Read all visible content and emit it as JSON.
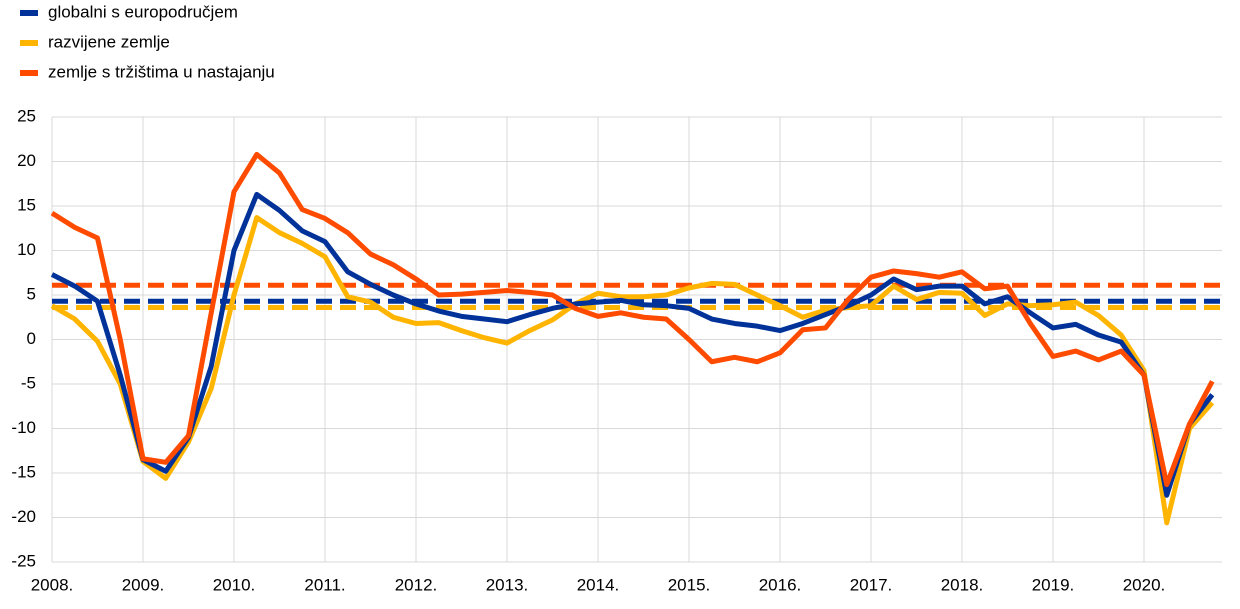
{
  "chart_data": {
    "type": "line",
    "categories": [
      "2008.",
      null,
      null,
      null,
      "2009.",
      null,
      null,
      null,
      "2010.",
      null,
      null,
      null,
      "2011.",
      null,
      null,
      null,
      "2012.",
      null,
      null,
      null,
      "2013.",
      null,
      null,
      null,
      "2014.",
      null,
      null,
      null,
      "2015.",
      null,
      null,
      null,
      "2016.",
      null,
      null,
      null,
      "2017.",
      null,
      null,
      null,
      "2018.",
      null,
      null,
      null,
      "2019.",
      null,
      null,
      null,
      "2020.",
      null,
      null,
      null
    ],
    "ylim": [
      -25,
      25
    ],
    "yticks": [
      25,
      20,
      15,
      10,
      5,
      0,
      -5,
      -10,
      -15,
      -20,
      -25
    ],
    "grid": true,
    "series": [
      {
        "name": "globalni s europodručjem",
        "color": "#003299",
        "average": 4.3,
        "values": [
          7.3,
          6,
          4.3,
          -4,
          -13.5,
          -14.8,
          -11,
          -3,
          10,
          16.3,
          14.5,
          12.2,
          11,
          7.6,
          6.2,
          5,
          4,
          3.2,
          2.6,
          2.3,
          2,
          2.8,
          3.5,
          4,
          4.2,
          4.4,
          3.9,
          3.8,
          3.5,
          2.3,
          1.8,
          1.5,
          1,
          1.8,
          2.8,
          3.8,
          5,
          6.8,
          5.6,
          6,
          6,
          4,
          4.8,
          3,
          1.3,
          1.7,
          0.5,
          -0.3,
          -4,
          -17.5,
          -9.5,
          -6.2
        ]
      },
      {
        "name": "razvijene zemlje",
        "color": "#ffb400",
        "average": 3.6,
        "values": [
          3.8,
          2.3,
          -0.2,
          -5,
          -13.7,
          -15.6,
          -11.5,
          -5.5,
          5,
          13.7,
          12,
          10.8,
          9.3,
          4.8,
          4.2,
          2.5,
          1.8,
          1.9,
          1,
          0.2,
          -0.4,
          1,
          2.2,
          4,
          5.2,
          4.8,
          4.8,
          5,
          5.8,
          6.3,
          6.2,
          5,
          3.8,
          2.5,
          3.3,
          3.6,
          3.8,
          6,
          4.5,
          5.3,
          5.2,
          2.7,
          4,
          3.8,
          3.9,
          4.2,
          2.7,
          0.5,
          -3.5,
          -20.6,
          -10,
          -7.1
        ]
      },
      {
        "name": "zemlje s tržištima u nastajanju",
        "color": "#ff4b00",
        "average": 6.1,
        "values": [
          14.2,
          12.6,
          11.4,
          0,
          -13.4,
          -13.8,
          -10.8,
          3,
          16.6,
          20.8,
          18.7,
          14.6,
          13.6,
          12,
          9.6,
          8.4,
          6.8,
          5,
          5.1,
          5.3,
          5.5,
          5.3,
          5,
          3.5,
          2.6,
          3,
          2.5,
          2.3,
          0,
          -2.5,
          -2,
          -2.5,
          -1.5,
          1.1,
          1.3,
          4.5,
          7,
          7.7,
          7.4,
          7,
          7.6,
          5.7,
          6,
          1.8,
          -1.9,
          -1.3,
          -2.3,
          -1.3,
          -4,
          -16.3,
          -9.5,
          -4.7
        ]
      }
    ]
  }
}
